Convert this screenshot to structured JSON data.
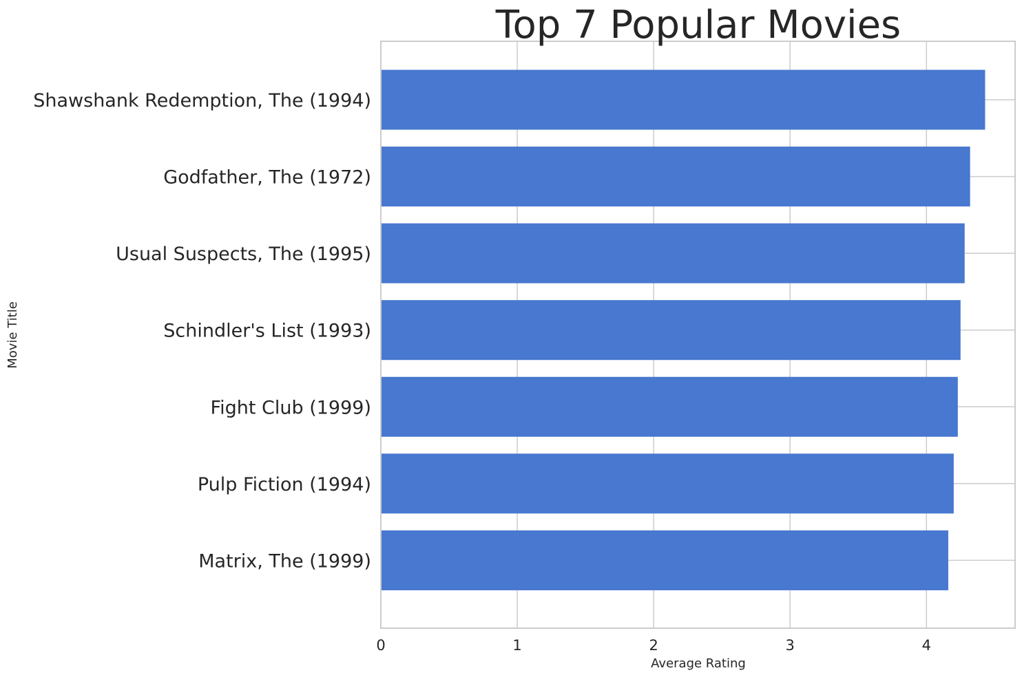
{
  "chart_data": {
    "type": "bar",
    "orientation": "horizontal",
    "title": "Top 7 Popular Movies",
    "xlabel": "Average Rating",
    "ylabel": "Movie Title",
    "categories": [
      "Shawshank Redemption, The (1994)",
      "Godfather, The (1972)",
      "Usual Suspects, The (1995)",
      "Schindler's List (1993)",
      "Fight Club (1999)",
      "Pulp Fiction (1994)",
      "Matrix, The (1999)"
    ],
    "values": [
      4.43,
      4.32,
      4.28,
      4.25,
      4.23,
      4.2,
      4.16
    ],
    "xlim": [
      0,
      4.65
    ],
    "xticks": [
      "0",
      "1",
      "2",
      "3",
      "4"
    ],
    "grid": true,
    "bar_color": "#4878cf",
    "grid_color": "#cccccc",
    "spine_color": "#cccccc"
  }
}
